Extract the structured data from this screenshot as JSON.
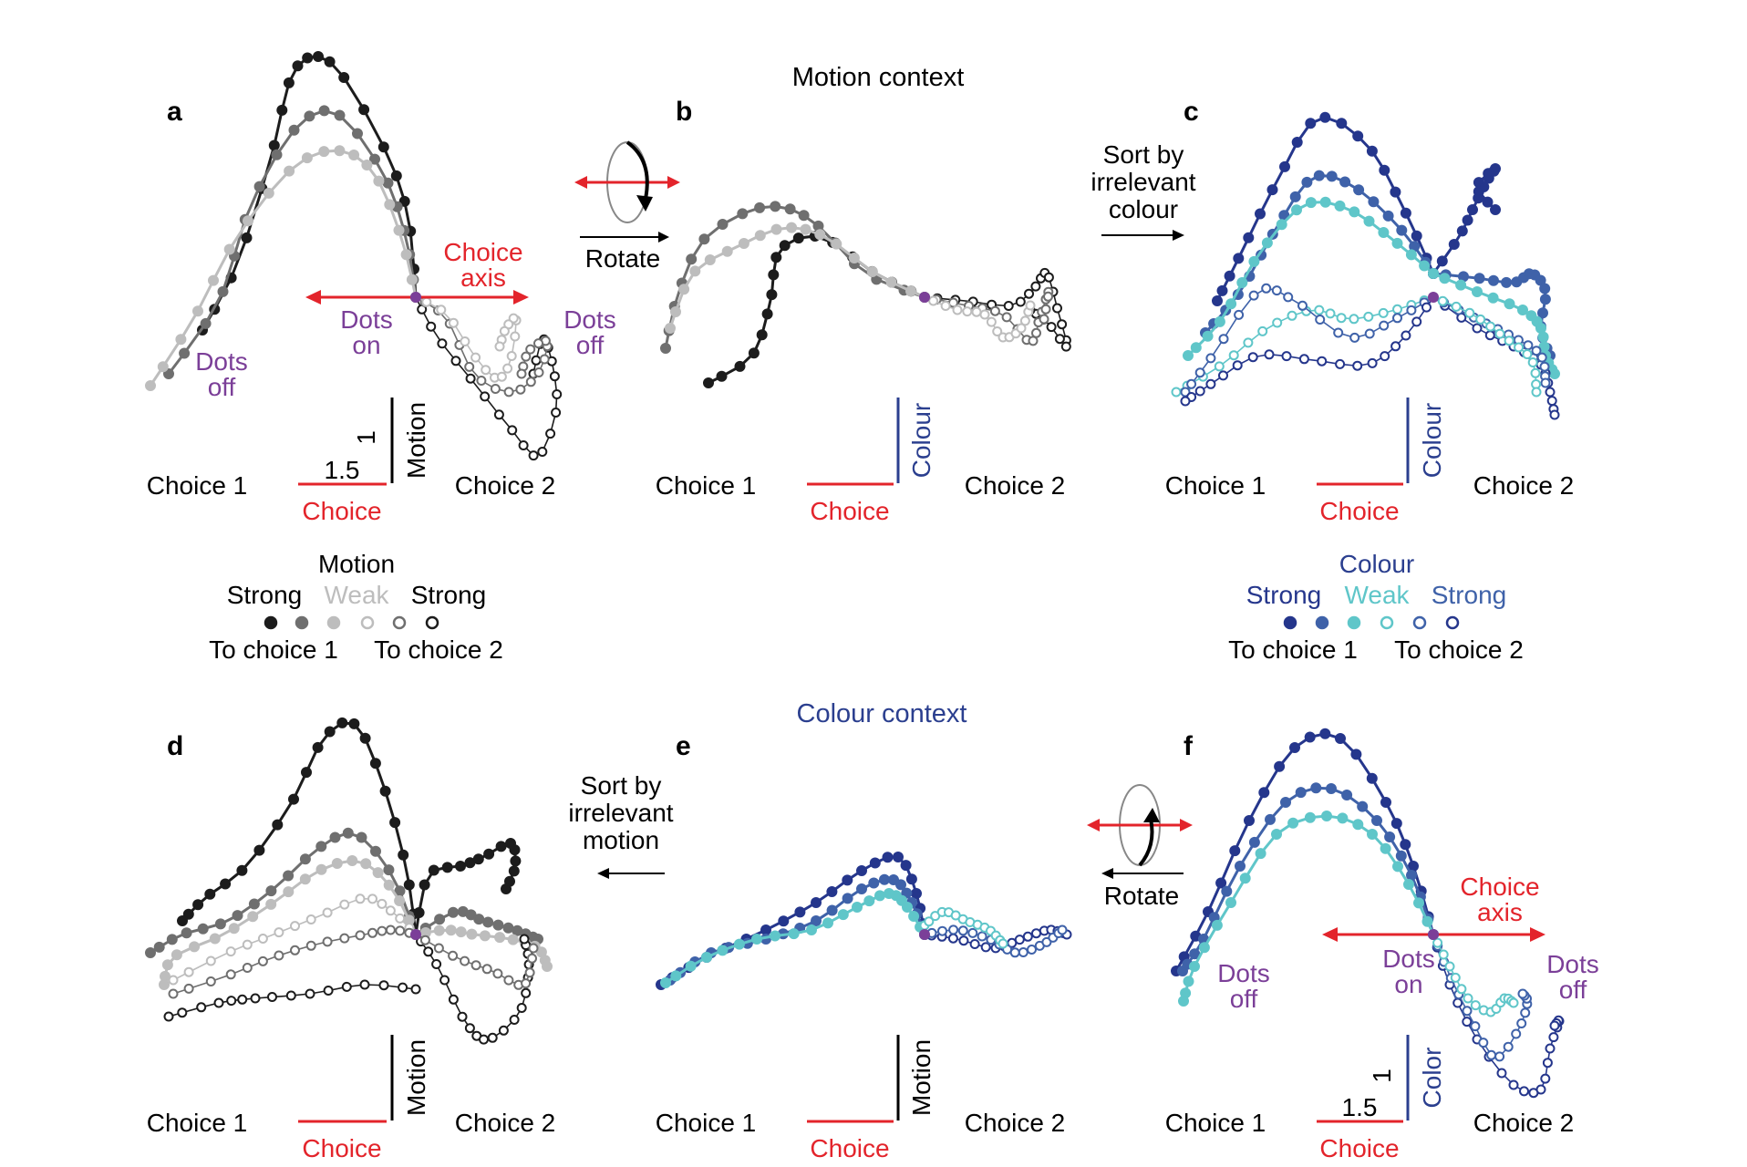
{
  "colors": {
    "motion_strong": "#1c1c1c",
    "motion_mid": "#6f6f6f",
    "motion_weak": "#bdbdbd",
    "colour_strong": "#25368c",
    "colour_mid": "#3f62a9",
    "colour_weak": "#5fc6c9",
    "choice_red": "#e3242b",
    "dots_purple": "#7b3f98",
    "colour_context_text": "#2b3f8f"
  },
  "headings": {
    "motion_context": "Motion context",
    "colour_context": "Colour context"
  },
  "panels": {
    "a": "a",
    "b": "b",
    "c": "c",
    "d": "d",
    "e": "e",
    "f": "f"
  },
  "labels": {
    "choice1": "Choice 1",
    "choice2": "Choice 2",
    "choice": "Choice",
    "motion": "Motion",
    "colour": "Colour",
    "color": "Color",
    "scale_choice": "1.5",
    "scale_vertical": "1",
    "choice_axis_line1": "Choice",
    "choice_axis_line2": "axis",
    "dots_on_1": "Dots",
    "dots_on_2": "on",
    "dots_off_1": "Dots",
    "dots_off_2": "off",
    "rotate": "Rotate",
    "sort_colour": [
      "Sort by",
      "irrelevant",
      "colour"
    ],
    "sort_motion": [
      "Sort by",
      "irrelevant",
      "motion"
    ]
  },
  "legend_motion": {
    "title": "Motion",
    "strong": "Strong",
    "weak": "Weak",
    "to1": "To choice 1",
    "to2": "To choice 2"
  },
  "legend_colour": {
    "title": "Colour",
    "strong": "Strong",
    "weak": "Weak",
    "to1": "To choice 1",
    "to2": "To choice 2"
  }
}
